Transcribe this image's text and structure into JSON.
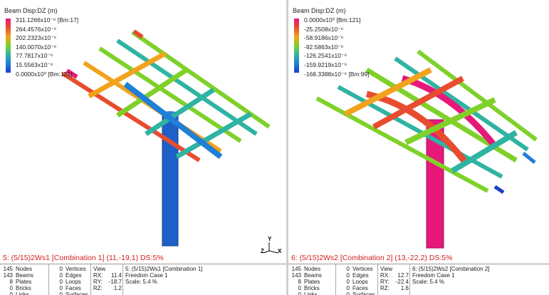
{
  "left": {
    "legend": {
      "title": "Beam Disp:DZ (m)",
      "labels": [
        "311.1266x10⁻⁶ [Bm:17]",
        "264.4576x10⁻⁶",
        "202.2323x10⁻⁶",
        "140.0070x10⁻⁶",
        "77.7817x10⁻⁶",
        "15.5563x10⁻⁶",
        "0.0000x10⁰ [Bm:121]"
      ],
      "colors": [
        "#e6197a",
        "#e84c2e",
        "#f2a21c",
        "#7fd12a",
        "#2fb3a3",
        "#1f7fd6",
        "#1b3fc8"
      ]
    },
    "status": "5: (5/15)2Ws1 [Combination 1]  (11,-19,1)  DS:5%",
    "info": {
      "counts": [
        {
          "n": "145",
          "label": "Nodes"
        },
        {
          "n": "143",
          "label": "Beams"
        },
        {
          "n": "8",
          "label": "Plates"
        },
        {
          "n": "0",
          "label": "Bricks"
        },
        {
          "n": "0",
          "label": "Links"
        }
      ],
      "geom": [
        {
          "n": "0",
          "label": "Vertices"
        },
        {
          "n": "0",
          "label": "Edges"
        },
        {
          "n": "0",
          "label": "Loops"
        },
        {
          "n": "0",
          "label": "Faces"
        },
        {
          "n": "0",
          "label": "Surfaces"
        }
      ],
      "view_title": "View",
      "view": [
        {
          "k": "RX:",
          "v": "11.4"
        },
        {
          "k": "RY:",
          "v": "-18.7"
        },
        {
          "k": "RZ:",
          "v": "1.2"
        }
      ],
      "case": [
        "5: (5/15)2Ws1 [Combination 1]",
        "Freedom Case 1",
        "Scale:  5.4 %"
      ]
    }
  },
  "right": {
    "legend": {
      "title": "Beam Disp:DZ (m)",
      "labels": [
        "0.0000x10⁰ [Bm:121]",
        "-25.2508x10⁻⁶",
        "-58.9186x10⁻⁶",
        "-92.5863x10⁻⁶",
        "-126.2541x10⁻⁶",
        "-159.9219x10⁻⁶",
        "-168.3388x10⁻⁶ [Bm:99]"
      ],
      "colors": [
        "#e6197a",
        "#e84c2e",
        "#f2a21c",
        "#7fd12a",
        "#2fb3a3",
        "#1f7fd6",
        "#1b3fc8"
      ]
    },
    "status": "6: (5/15)2Ws2 [Combination 2]  (13,-22,2)  DS:5%",
    "info": {
      "counts": [
        {
          "n": "145",
          "label": "Nodes"
        },
        {
          "n": "143",
          "label": "Beams"
        },
        {
          "n": "8",
          "label": "Plates"
        },
        {
          "n": "0",
          "label": "Bricks"
        },
        {
          "n": "0",
          "label": "Links"
        }
      ],
      "geom": [
        {
          "n": "0",
          "label": "Vertices"
        },
        {
          "n": "0",
          "label": "Edges"
        },
        {
          "n": "0",
          "label": "Loops"
        },
        {
          "n": "0",
          "label": "Faces"
        },
        {
          "n": "0",
          "label": "Surfaces"
        }
      ],
      "view_title": "View",
      "view": [
        {
          "k": "RX:",
          "v": "12.7"
        },
        {
          "k": "RY:",
          "v": "-22.4"
        },
        {
          "k": "RZ:",
          "v": "1.6"
        }
      ],
      "case": [
        "6: (5/15)2Ws2 [Combination 2]",
        "Freedom Case 1",
        "Scale:  5.4 %"
      ]
    }
  },
  "axes": {
    "y": "Y",
    "z": "Z",
    "x": "X"
  }
}
